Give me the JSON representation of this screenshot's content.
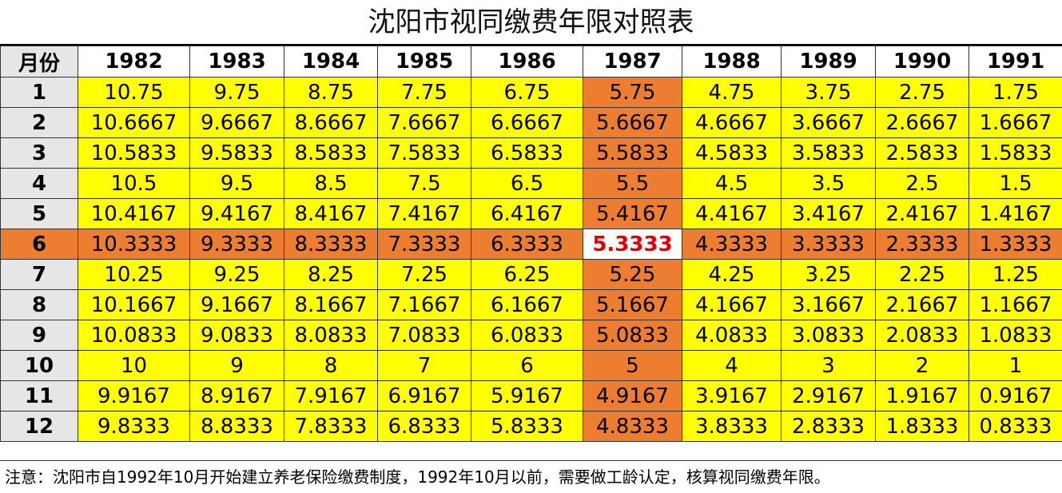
{
  "title": "沈阳市视同缴费年限对照表",
  "header": {
    "corner_label": "月份",
    "years": [
      "1982",
      "1983",
      "1984",
      "1985",
      "1986",
      "1987",
      "1988",
      "1989",
      "1990",
      "1991"
    ]
  },
  "rows": [
    {
      "month": "1",
      "values": [
        "10.75",
        "9.75",
        "8.75",
        "7.75",
        "6.75",
        "5.75",
        "4.75",
        "3.75",
        "2.75",
        "1.75"
      ]
    },
    {
      "month": "2",
      "values": [
        "10.6667",
        "9.6667",
        "8.6667",
        "7.6667",
        "6.6667",
        "5.6667",
        "4.6667",
        "3.6667",
        "2.6667",
        "1.6667"
      ]
    },
    {
      "month": "3",
      "values": [
        "10.5833",
        "9.5833",
        "8.5833",
        "7.5833",
        "6.5833",
        "5.5833",
        "4.5833",
        "3.5833",
        "2.5833",
        "1.5833"
      ]
    },
    {
      "month": "4",
      "values": [
        "10.5",
        "9.5",
        "8.5",
        "7.5",
        "6.5",
        "5.5",
        "4.5",
        "3.5",
        "2.5",
        "1.5"
      ]
    },
    {
      "month": "5",
      "values": [
        "10.4167",
        "9.4167",
        "8.4167",
        "7.4167",
        "6.4167",
        "5.4167",
        "4.4167",
        "3.4167",
        "2.4167",
        "1.4167"
      ]
    },
    {
      "month": "6",
      "values": [
        "10.3333",
        "9.3333",
        "8.3333",
        "7.3333",
        "6.3333",
        "5.3333",
        "4.3333",
        "3.3333",
        "2.3333",
        "1.3333"
      ]
    },
    {
      "month": "7",
      "values": [
        "10.25",
        "9.25",
        "8.25",
        "7.25",
        "6.25",
        "5.25",
        "4.25",
        "3.25",
        "2.25",
        "1.25"
      ]
    },
    {
      "month": "8",
      "values": [
        "10.1667",
        "9.1667",
        "8.1667",
        "7.1667",
        "6.1667",
        "5.1667",
        "4.1667",
        "3.1667",
        "2.1667",
        "1.1667"
      ]
    },
    {
      "month": "9",
      "values": [
        "10.0833",
        "9.0833",
        "8.0833",
        "7.0833",
        "6.0833",
        "5.0833",
        "4.0833",
        "3.0833",
        "2.0833",
        "1.0833"
      ]
    },
    {
      "month": "10",
      "values": [
        "10",
        "9",
        "8",
        "7",
        "6",
        "5",
        "4",
        "3",
        "2",
        "1"
      ]
    },
    {
      "month": "11",
      "values": [
        "9.9167",
        "8.9167",
        "7.9167",
        "6.9167",
        "5.9167",
        "4.9167",
        "3.9167",
        "2.9167",
        "1.9167",
        "0.9167"
      ]
    },
    {
      "month": "12",
      "values": [
        "9.8333",
        "8.8333",
        "7.8333",
        "6.8333",
        "5.8333",
        "4.8333",
        "3.8333",
        "2.8333",
        "1.8333",
        "0.8333"
      ]
    }
  ],
  "highlight": {
    "row_month": "6",
    "column_year": "1987"
  },
  "note": "注意：沈阳市自1992年10月开始建立养老保险缴费制度，1992年10月以前，需要做工龄认定，核算视同缴费年限。",
  "colors": {
    "cell_fill": "#ffff00",
    "highlight_fill": "#ed7d31",
    "header_fill": "#e7e6e6",
    "focus_text": "#e00000",
    "focus_fill": "#ffffff"
  }
}
